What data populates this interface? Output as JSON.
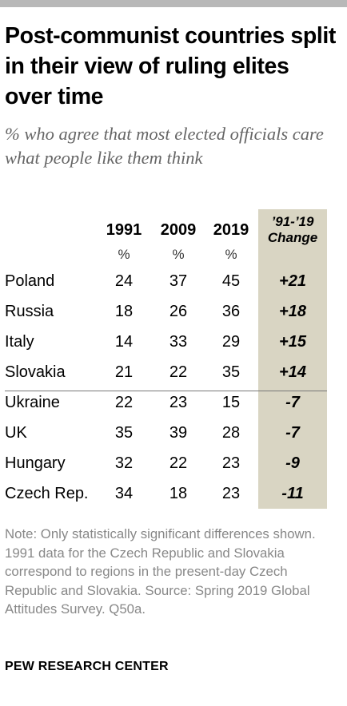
{
  "title": "Post-communist countries split in their view of ruling elites over time",
  "subtitle": "% who agree that most elected officials care what people like them think",
  "chart_data": {
    "type": "table",
    "columns": [
      "1991",
      "2009",
      "2019"
    ],
    "column_units": [
      "%",
      "%",
      "%"
    ],
    "change_header_line1": "’91-’19",
    "change_header_line2": "Change",
    "rows": [
      {
        "country": "Poland",
        "values": [
          24,
          37,
          45
        ],
        "change": "+21"
      },
      {
        "country": "Russia",
        "values": [
          18,
          26,
          36
        ],
        "change": "+18"
      },
      {
        "country": "Italy",
        "values": [
          14,
          33,
          29
        ],
        "change": "+15"
      },
      {
        "country": "Slovakia",
        "values": [
          21,
          22,
          35
        ],
        "change": "+14"
      },
      {
        "country": "Ukraine",
        "values": [
          22,
          23,
          15
        ],
        "change": "-7"
      },
      {
        "country": "UK",
        "values": [
          35,
          39,
          28
        ],
        "change": "-7"
      },
      {
        "country": "Hungary",
        "values": [
          32,
          22,
          23
        ],
        "change": "-9"
      },
      {
        "country": "Czech Rep.",
        "values": [
          34,
          18,
          23
        ],
        "change": "-11"
      }
    ]
  },
  "note": "Note: Only statistically significant differences shown. 1991 data for the Czech Republic and Slovakia correspond to regions in the present-day Czech Republic and Slovakia. Source: Spring 2019 Global Attitudes Survey. Q50a.",
  "credit": "PEW RESEARCH CENTER",
  "colors": {
    "change_band": "#d9d5c3",
    "subtitle": "#666666",
    "note": "#888888",
    "top_rule": "#b8b8b8"
  }
}
